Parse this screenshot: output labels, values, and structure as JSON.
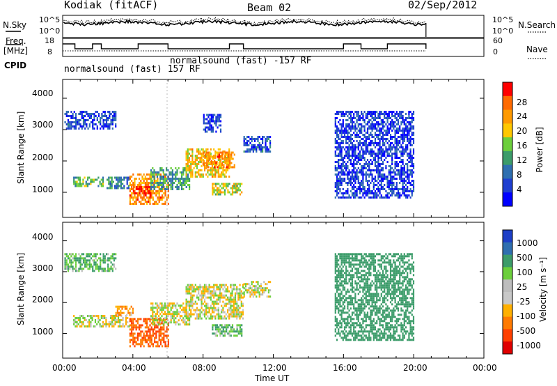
{
  "header": {
    "site": "Kodiak (fitACF)",
    "beam": "Beam 02",
    "date": "02/Sep/2012"
  },
  "strip": {
    "nsky_label": "N.Sky",
    "nsky_ticks": [
      "10^5",
      "10^0"
    ],
    "nsearch_label": "N.Search",
    "nsearch_ticks": [
      "10^5",
      "10^0"
    ],
    "freq_label_line1": "Freq.",
    "freq_label_line2": "[MHz]",
    "freq_ticks": [
      "18",
      "8"
    ],
    "nave_label": "Nave",
    "nave_ticks": [
      "60",
      "0"
    ],
    "cpid_label": "CPID",
    "cpid_1": "normalsound (fast) 157 RF",
    "cpid_2": "normalsound (fast) -157 RF"
  },
  "panels": {
    "ylabel": "Slant Range [km]",
    "yticks": [
      "4000",
      "3000",
      "2000",
      "1000"
    ],
    "xlabel": "Time UT",
    "xticks": [
      "00:00",
      "04:00",
      "08:00",
      "12:00",
      "16:00",
      "20:00",
      "00:00"
    ]
  },
  "power_scale": {
    "label": "Power [dB]",
    "ticks": [
      "28",
      "24",
      "20",
      "16",
      "12",
      "8",
      "4"
    ],
    "colors": [
      "#ff0000",
      "#ff6a00",
      "#ff9a00",
      "#ffc800",
      "#6ccf3c",
      "#3c9c6a",
      "#2f6fb0",
      "#1f3fd0",
      "#0000ff"
    ]
  },
  "velocity_scale": {
    "label": "Velocity [m s⁻¹]",
    "ticks": [
      "1000",
      "500",
      "100",
      "25",
      "-25",
      "-100",
      "-500",
      "-1000"
    ],
    "colors": [
      "#1d3fc7",
      "#2f6fb0",
      "#3c9c6a",
      "#6ccf3c",
      "#bdbdbd",
      "#c8c8c8",
      "#ffb000",
      "#ff7a00",
      "#ff4000",
      "#e00000"
    ]
  },
  "chart_data": [
    {
      "type": "heatmap",
      "title": "Kodiak (fitACF) Beam 02 02/Sep/2012",
      "xlabel": "Time UT",
      "ylabel": "Slant Range [km]",
      "colorbar_label": "Power [dB]",
      "xlim": [
        0,
        24
      ],
      "ylim": [
        200,
        4600
      ],
      "clim": [
        0,
        32
      ],
      "regions": [
        {
          "t": [
            0.1,
            3.0
          ],
          "range": [
            3000,
            3600
          ],
          "value": 6
        },
        {
          "t": [
            0.6,
            2.3
          ],
          "range": [
            1200,
            1500
          ],
          "value": 14
        },
        {
          "t": [
            2.5,
            3.8
          ],
          "range": [
            1100,
            1500
          ],
          "value": 10
        },
        {
          "t": [
            3.8,
            6.0
          ],
          "range": [
            600,
            1600
          ],
          "value": 24
        },
        {
          "t": [
            4.0,
            5.0
          ],
          "range": [
            900,
            1200
          ],
          "value": 30
        },
        {
          "t": [
            5.0,
            7.2
          ],
          "range": [
            1100,
            1800
          ],
          "value": 12
        },
        {
          "t": [
            7.0,
            9.5
          ],
          "range": [
            1500,
            2400
          ],
          "value": 20
        },
        {
          "t": [
            8.0,
            9.8
          ],
          "range": [
            1800,
            2300
          ],
          "value": 24
        },
        {
          "t": [
            8.5,
            10.2
          ],
          "range": [
            900,
            1300
          ],
          "value": 18
        },
        {
          "t": [
            8.0,
            9.0
          ],
          "range": [
            2900,
            3500
          ],
          "value": 6
        },
        {
          "t": [
            10.3,
            11.8
          ],
          "range": [
            2300,
            2800
          ],
          "value": 6
        },
        {
          "t": [
            15.5,
            20.0
          ],
          "range": [
            800,
            3600
          ],
          "value": 5
        }
      ]
    },
    {
      "type": "heatmap",
      "title": "",
      "xlabel": "Time UT",
      "ylabel": "Slant Range [km]",
      "colorbar_label": "Velocity [m s⁻¹]",
      "xlim": [
        0,
        24
      ],
      "ylim": [
        200,
        4600
      ],
      "clim": [
        -1000,
        1000
      ],
      "regions": [
        {
          "t": [
            0.1,
            3.0
          ],
          "range": [
            3000,
            3600
          ],
          "value": 100
        },
        {
          "t": [
            0.6,
            3.8
          ],
          "range": [
            1200,
            1600
          ],
          "value": 0
        },
        {
          "t": [
            3.0,
            4.0
          ],
          "range": [
            1600,
            1900
          ],
          "value": -100
        },
        {
          "t": [
            3.8,
            6.0
          ],
          "range": [
            600,
            1500
          ],
          "value": -500
        },
        {
          "t": [
            5.0,
            7.2
          ],
          "range": [
            1300,
            2000
          ],
          "value": 0
        },
        {
          "t": [
            7.0,
            10.3
          ],
          "range": [
            1500,
            2600
          ],
          "value": 0
        },
        {
          "t": [
            8.5,
            10.2
          ],
          "range": [
            900,
            1300
          ],
          "value": 100
        },
        {
          "t": [
            10.3,
            11.8
          ],
          "range": [
            2200,
            2700
          ],
          "value": 0
        },
        {
          "t": [
            15.5,
            20.0
          ],
          "range": [
            800,
            3600
          ],
          "value": 200
        }
      ]
    }
  ]
}
